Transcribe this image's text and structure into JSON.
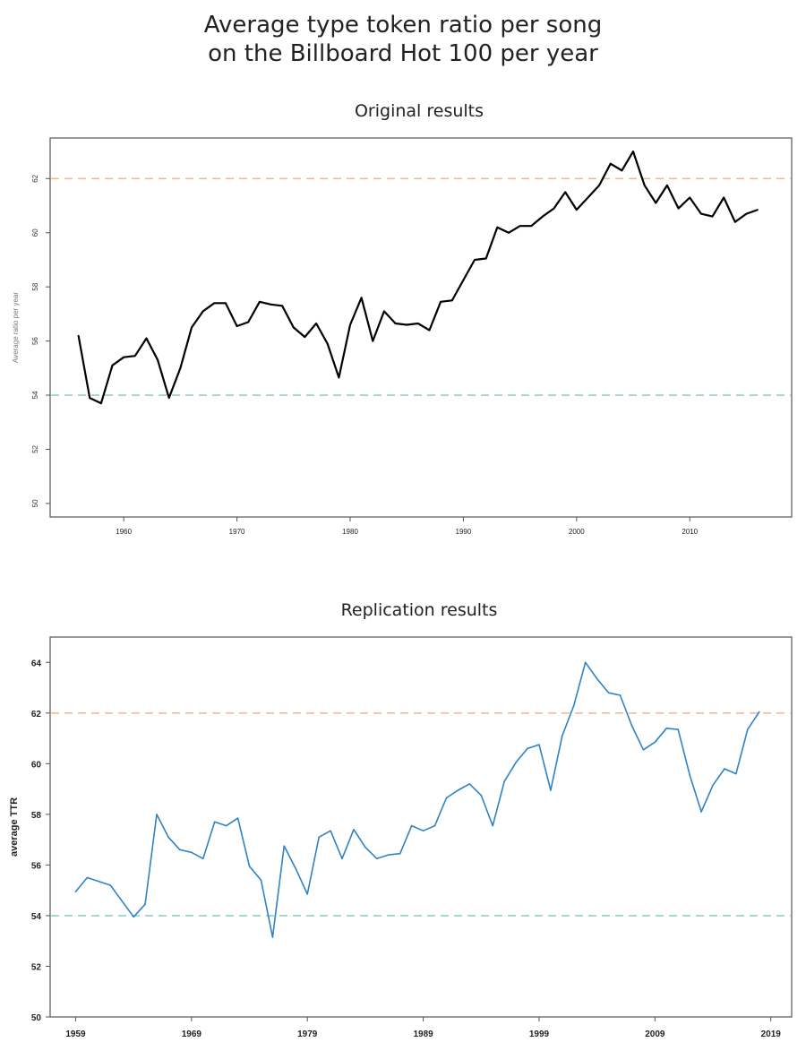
{
  "title_lines": [
    "Average type token ratio per song",
    "on the Billboard Hot 100 per year"
  ],
  "chart_data": [
    {
      "type": "line",
      "title": "Original results",
      "xlabel": "",
      "ylabel": "Average ratio per year",
      "xlim": [
        1953.5,
        2019
      ],
      "ylim": [
        49.5,
        63.5
      ],
      "xticks": [
        1960,
        1970,
        1980,
        1990,
        2000,
        2010
      ],
      "yticks": [
        50,
        52,
        54,
        56,
        58,
        60,
        62
      ],
      "reference_lines": [
        {
          "y": 62,
          "color": "#f7b79a",
          "style": "dashed"
        },
        {
          "y": 54,
          "color": "#8fd3c2",
          "style": "dashed"
        }
      ],
      "line_color": "#000000",
      "series": [
        {
          "x": [
            1956,
            1957,
            1958,
            1959,
            1960,
            1961,
            1962,
            1963,
            1964,
            1965,
            1966,
            1967,
            1968,
            1969,
            1970,
            1971,
            1972,
            1973,
            1974,
            1975,
            1976,
            1977,
            1978,
            1979,
            1980,
            1981,
            1982,
            1983,
            1984,
            1985,
            1986,
            1987,
            1988,
            1989,
            1990,
            1991,
            1992,
            1993,
            1994,
            1995,
            1996,
            1997,
            1998,
            1999,
            2000,
            2001,
            2002,
            2003,
            2004,
            2005,
            2006,
            2007,
            2008,
            2009,
            2010,
            2011,
            2012,
            2013,
            2014,
            2015,
            2016
          ],
          "values": [
            56.2,
            53.9,
            53.7,
            55.1,
            55.4,
            55.45,
            56.1,
            55.3,
            53.9,
            55.0,
            56.5,
            57.1,
            57.4,
            57.4,
            56.55,
            56.7,
            57.45,
            57.35,
            57.3,
            56.5,
            56.15,
            56.65,
            55.9,
            54.65,
            56.6,
            57.6,
            56.0,
            57.1,
            56.65,
            56.6,
            56.65,
            56.4,
            57.45,
            57.5,
            58.25,
            59.0,
            59.05,
            60.2,
            60.0,
            60.25,
            60.25,
            60.6,
            60.9,
            61.5,
            60.85,
            61.3,
            61.75,
            62.55,
            62.3,
            63.0,
            61.75,
            61.1,
            61.75,
            60.9,
            61.3,
            60.7,
            60.6,
            61.3,
            60.4,
            60.7,
            60.85
          ]
        }
      ]
    },
    {
      "type": "line",
      "title": "Replication results",
      "xlabel": "",
      "ylabel": "average TTR",
      "xlim": [
        1956.8,
        2020.8
      ],
      "ylim": [
        50,
        65
      ],
      "xticks": [
        1959,
        1969,
        1979,
        1989,
        1999,
        2009,
        2019
      ],
      "yticks": [
        50,
        52,
        54,
        56,
        58,
        60,
        62,
        64
      ],
      "reference_lines": [
        {
          "y": 62,
          "color": "#f7b79a",
          "style": "dashed"
        },
        {
          "y": 54,
          "color": "#8fd3c2",
          "style": "dashed"
        }
      ],
      "line_color": "#2e83c6",
      "series": [
        {
          "x": [
            1959,
            1960,
            1962,
            1964,
            1965,
            1966,
            1967,
            1968,
            1969,
            1970,
            1971,
            1972,
            1973,
            1974,
            1975,
            1976,
            1977,
            1978,
            1979,
            1980,
            1981,
            1982,
            1983,
            1984,
            1985,
            1986,
            1987,
            1988,
            1989,
            1990,
            1991,
            1992,
            1993,
            1994,
            1995,
            1996,
            1997,
            1998,
            1999,
            2000,
            2001,
            2002,
            2003,
            2004,
            2005,
            2006,
            2007,
            2008,
            2009,
            2010,
            2011,
            2012,
            2013,
            2014,
            2015,
            2016,
            2017,
            2018
          ],
          "values": [
            54.95,
            55.5,
            55.2,
            53.95,
            54.45,
            58.0,
            57.1,
            56.6,
            56.5,
            56.25,
            57.7,
            57.55,
            57.85,
            55.95,
            55.4,
            53.15,
            56.75,
            55.85,
            54.85,
            57.1,
            57.35,
            56.25,
            57.4,
            56.7,
            56.25,
            56.4,
            56.45,
            57.55,
            57.35,
            57.55,
            58.65,
            58.95,
            59.2,
            58.75,
            57.55,
            59.3,
            60.05,
            60.6,
            60.75,
            58.95,
            61.1,
            62.3,
            64.0,
            63.35,
            62.8,
            62.7,
            61.5,
            60.55,
            60.85,
            61.4,
            61.35,
            59.55,
            58.1,
            59.15,
            59.8,
            59.6,
            61.35,
            62.05
          ]
        }
      ]
    }
  ]
}
